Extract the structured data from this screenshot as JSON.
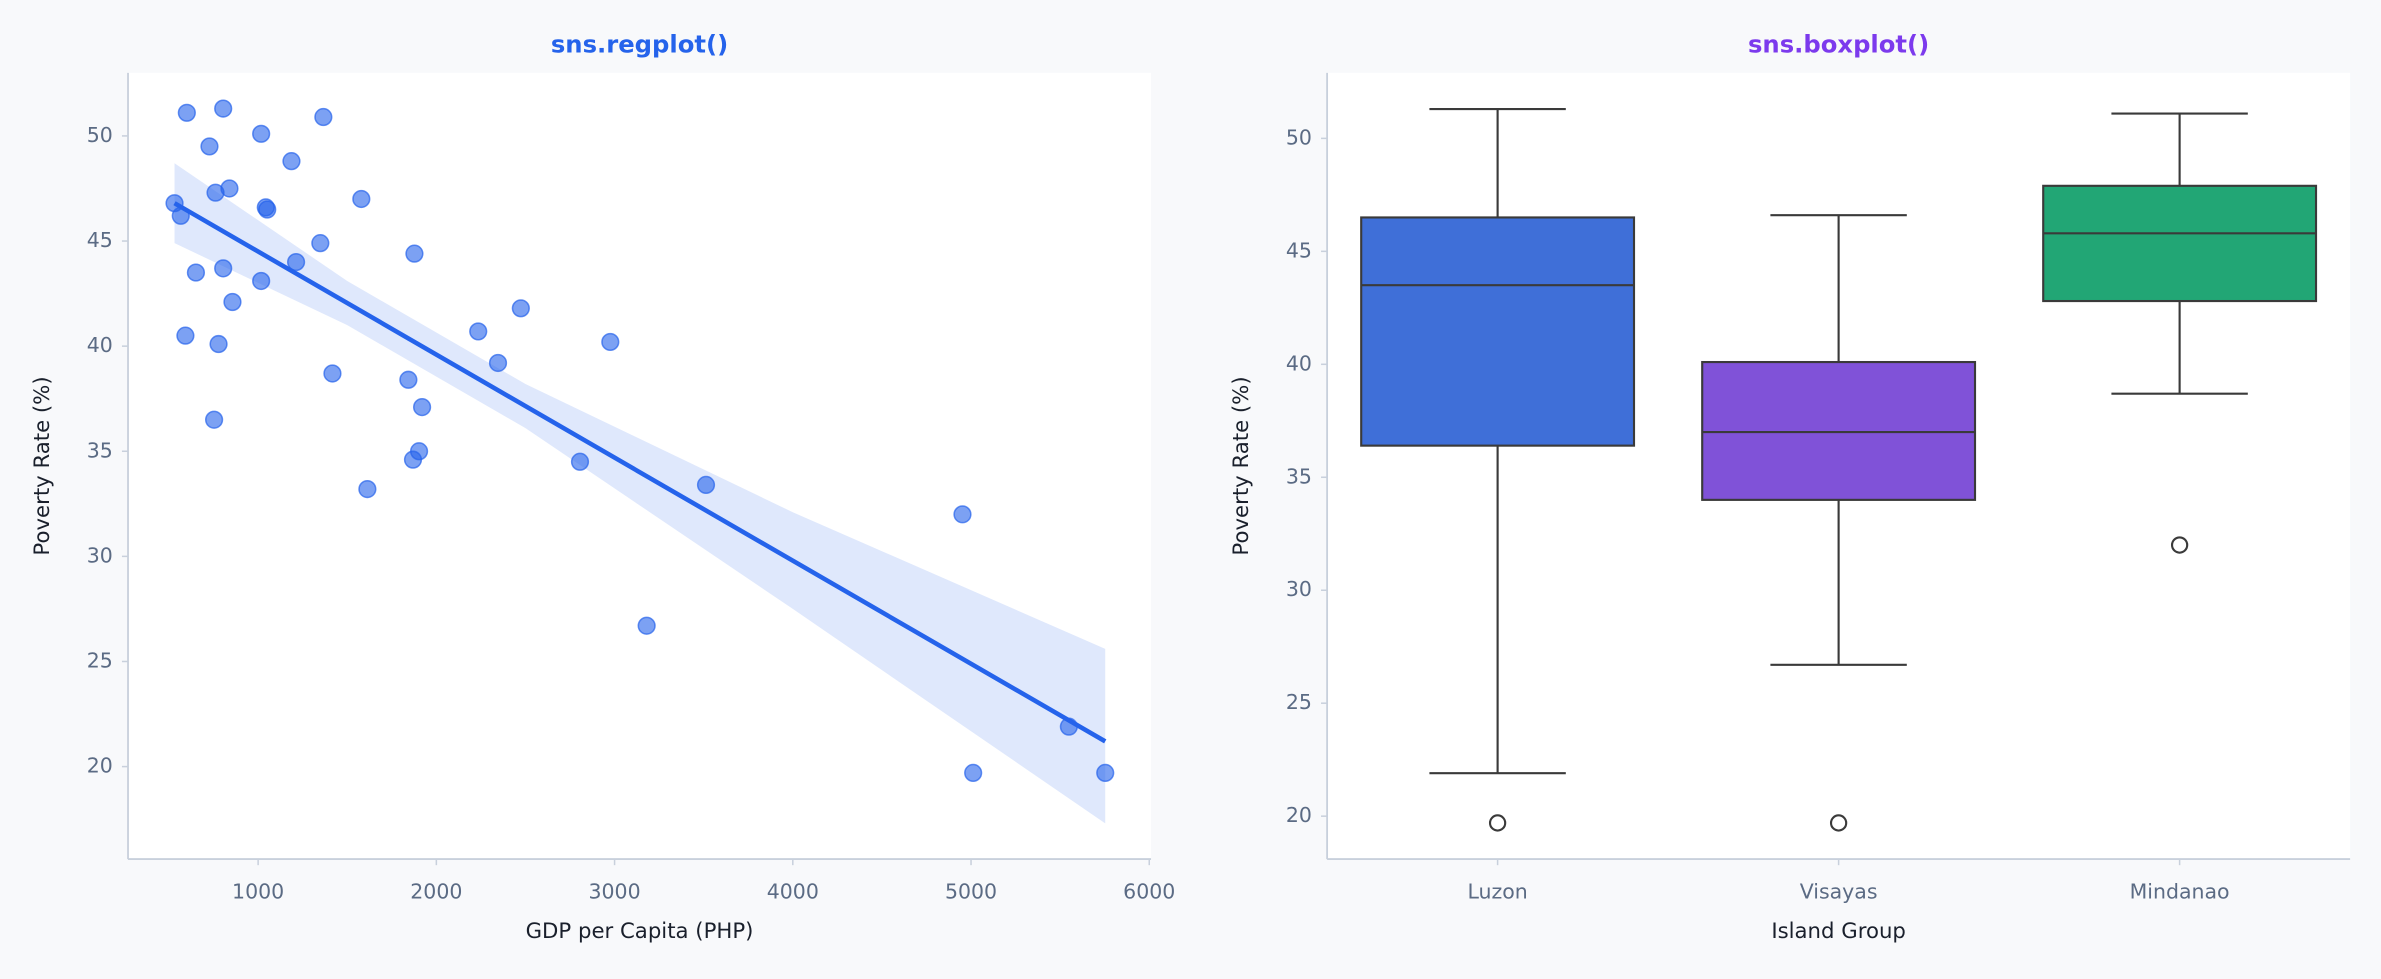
{
  "chart_data": [
    {
      "type": "scatter",
      "title": "sns.regplot()",
      "title_color": "#2563eb",
      "x_label": "GDP per Capita (PHP)",
      "y_label": "Poverty Rate (%)",
      "color": "#2563eb",
      "x": [
        531,
        566,
        600,
        592,
        651,
        727,
        753,
        761,
        778,
        804,
        804,
        839,
        856,
        1017,
        1017,
        1043,
        1051,
        1187,
        1213,
        1349,
        1366,
        1417,
        1579,
        1613,
        1843,
        1877,
        1869,
        1903,
        1920,
        2235,
        2346,
        2474,
        2806,
        2976,
        3180,
        3513,
        4952,
        5012,
        5549,
        5753
      ],
      "values": [
        46.8,
        46.2,
        51.1,
        40.5,
        43.5,
        49.5,
        36.5,
        47.3,
        40.1,
        43.7,
        51.3,
        47.5,
        42.1,
        50.1,
        43.1,
        46.6,
        46.5,
        48.8,
        44.0,
        44.9,
        50.9,
        38.7,
        47.0,
        33.2,
        38.4,
        44.4,
        34.6,
        35.0,
        37.1,
        40.7,
        39.2,
        41.8,
        34.5,
        40.2,
        26.7,
        33.4,
        32.0,
        19.7,
        21.9,
        19.7
      ],
      "regression": {
        "x": [
          531,
          5753
        ],
        "values": [
          46.8,
          21.2
        ]
      },
      "ci": {
        "x": [
          531,
          1500,
          2500,
          4000,
          5753
        ],
        "lower": [
          44.9,
          41.0,
          36.1,
          27.5,
          17.3
        ],
        "upper": [
          48.7,
          43.1,
          38.2,
          32.1,
          25.6
        ]
      },
      "xlim": [
        270,
        6010
      ],
      "xticks": [
        1000,
        2000,
        3000,
        4000,
        5000,
        6000
      ],
      "ylim": [
        15.6,
        53.0
      ],
      "yticks": [
        20,
        25,
        30,
        35,
        40,
        45,
        50
      ]
    },
    {
      "type": "box",
      "title": "sns.boxplot()",
      "title_color": "#7c3aed",
      "x_label": "Island Group",
      "y_label": "Poverty Rate (%)",
      "categories": [
        "Luzon",
        "Visayas",
        "Mindanao"
      ],
      "boxes": [
        {
          "color": "#3f6fd8",
          "whislo": 21.9,
          "q1": 36.4,
          "med": 43.5,
          "q3": 46.5,
          "whishi": 51.3,
          "fliers": [
            19.7
          ]
        },
        {
          "color": "#8052d8",
          "whislo": 26.7,
          "q1": 34.0,
          "med": 37.0,
          "q3": 40.1,
          "whishi": 46.6,
          "fliers": [
            19.7
          ]
        },
        {
          "color": "#22a675",
          "whislo": 38.7,
          "q1": 42.8,
          "med": 45.8,
          "q3": 47.9,
          "whishi": 51.1,
          "fliers": [
            32.0
          ]
        }
      ],
      "ylim": [
        18.1,
        52.9
      ],
      "yticks": [
        20,
        25,
        30,
        35,
        40,
        45,
        50
      ]
    }
  ]
}
